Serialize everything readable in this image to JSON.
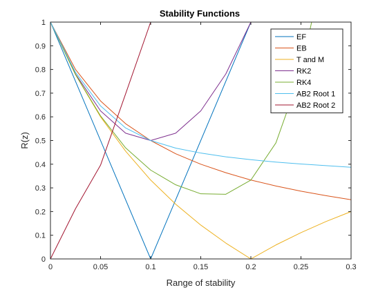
{
  "chart_data": {
    "type": "line",
    "title": "Stability Functions",
    "xlabel": "Range of stability",
    "ylabel": "R(z)",
    "xlim": [
      0,
      0.3
    ],
    "ylim": [
      0,
      1
    ],
    "xticks": [
      0,
      0.05,
      0.1,
      0.15,
      0.2,
      0.25,
      0.3
    ],
    "xtick_labels": [
      "0",
      "0.05",
      "0.1",
      "0.15",
      "0.2",
      "0.25",
      "0.3"
    ],
    "yticks": [
      0,
      0.1,
      0.2,
      0.3,
      0.4,
      0.5,
      0.6,
      0.7,
      0.8,
      0.9,
      1
    ],
    "ytick_labels": [
      "0",
      "0.1",
      "0.2",
      "0.3",
      "0.4",
      "0.5",
      "0.6",
      "0.7",
      "0.8",
      "0.9",
      "1"
    ],
    "grid": false,
    "legend_position": "top-right",
    "series": [
      {
        "name": "EF",
        "color": "#0072BD",
        "x": [
          0,
          0.1,
          0.2
        ],
        "y": [
          1,
          0,
          1
        ]
      },
      {
        "name": "EB",
        "color": "#D95319",
        "x": [
          0,
          0.025,
          0.05,
          0.075,
          0.1,
          0.125,
          0.15,
          0.175,
          0.2,
          0.225,
          0.25,
          0.275,
          0.3
        ],
        "y": [
          1,
          0.8,
          0.667,
          0.571,
          0.5,
          0.444,
          0.4,
          0.364,
          0.333,
          0.308,
          0.286,
          0.267,
          0.25
        ]
      },
      {
        "name": "T and M",
        "color": "#EDB120",
        "x": [
          0,
          0.025,
          0.05,
          0.075,
          0.1,
          0.125,
          0.15,
          0.175,
          0.2,
          0.225,
          0.25,
          0.275,
          0.3
        ],
        "y": [
          1,
          0.778,
          0.6,
          0.455,
          0.333,
          0.231,
          0.143,
          0.067,
          0,
          0.059,
          0.111,
          0.158,
          0.2
        ]
      },
      {
        "name": "RK2",
        "color": "#7E2F8E",
        "x": [
          0,
          0.025,
          0.05,
          0.075,
          0.1,
          0.125,
          0.15,
          0.175,
          0.2
        ],
        "y": [
          1,
          0.781,
          0.625,
          0.531,
          0.5,
          0.531,
          0.625,
          0.781,
          1
        ]
      },
      {
        "name": "RK4",
        "color": "#77AC30",
        "x": [
          0,
          0.025,
          0.05,
          0.075,
          0.1,
          0.125,
          0.15,
          0.175,
          0.2,
          0.225,
          0.25,
          0.275,
          0.2878
        ],
        "y": [
          1,
          0.779,
          0.604,
          0.469,
          0.375,
          0.313,
          0.275,
          0.273,
          0.333,
          0.49,
          0.789,
          1.285,
          1
        ]
      },
      {
        "name": "AB2 Root 1",
        "color": "#4DBEEE",
        "x": [
          0,
          0.025,
          0.05,
          0.075,
          0.1,
          0.125,
          0.15,
          0.175,
          0.2,
          0.225,
          0.25,
          0.275,
          0.3
        ],
        "y": [
          1,
          0.788,
          0.646,
          0.553,
          0.5,
          0.468,
          0.447,
          0.431,
          0.419,
          0.409,
          0.401,
          0.394,
          0.387
        ]
      },
      {
        "name": "AB2 Root 2",
        "color": "#A2142F",
        "x": [
          0,
          0.025,
          0.05,
          0.075,
          0.1
        ],
        "y": [
          0,
          0.212,
          0.396,
          0.697,
          1
        ]
      }
    ]
  }
}
